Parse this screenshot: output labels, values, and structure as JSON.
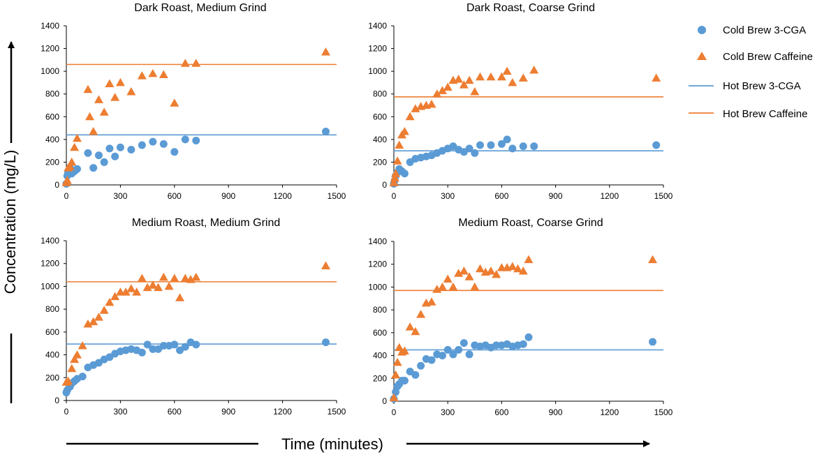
{
  "colors": {
    "cga": "#5b9bd5",
    "caffeine": "#ed7d31",
    "cga_line": "#5b9bd5",
    "caffeine_line": "#ed7d31",
    "axis": "#000000"
  },
  "figure": {
    "ylabel": "Concentration (mg/L)",
    "xlabel": "Time (minutes)"
  },
  "legend": {
    "placement": "top-right",
    "items": [
      {
        "label": "Cold Brew 3-CGA",
        "marker": "circle",
        "color_key": "cga"
      },
      {
        "label": "Cold Brew Caffeine",
        "marker": "triangle",
        "color_key": "caffeine"
      },
      {
        "label": "Hot Brew 3-CGA",
        "marker": "line",
        "color_key": "cga_line"
      },
      {
        "label": "Hot Brew Caffeine",
        "marker": "line",
        "color_key": "caffeine_line"
      }
    ]
  },
  "chart_data": [
    {
      "type": "scatter",
      "title": "Dark Roast, Medium Grind",
      "xlim": [
        0,
        1500
      ],
      "ylim": [
        0,
        1400
      ],
      "xticks": [
        "0",
        "300",
        "600",
        "900",
        "1200",
        "1500"
      ],
      "yticks": [
        "0",
        "200",
        "400",
        "600",
        "800",
        "1000",
        "1200",
        "1400"
      ],
      "grid": false,
      "series": [
        {
          "name": "Cold Brew 3-CGA",
          "color_key": "cga",
          "marker": "circle",
          "x": [
            0,
            5,
            10,
            20,
            30,
            45,
            60,
            120,
            150,
            180,
            210,
            240,
            270,
            300,
            360,
            420,
            480,
            540,
            600,
            660,
            720,
            1440
          ],
          "y": [
            10,
            80,
            110,
            150,
            100,
            120,
            140,
            280,
            150,
            260,
            200,
            320,
            250,
            330,
            310,
            350,
            380,
            360,
            290,
            400,
            390,
            470
          ]
        },
        {
          "name": "Cold Brew Caffeine",
          "color_key": "caffeine",
          "marker": "triangle",
          "x": [
            0,
            5,
            10,
            20,
            30,
            45,
            60,
            120,
            130,
            150,
            180,
            210,
            240,
            270,
            300,
            360,
            420,
            480,
            540,
            600,
            660,
            720,
            1440
          ],
          "y": [
            20,
            40,
            150,
            160,
            200,
            330,
            410,
            840,
            600,
            470,
            750,
            640,
            890,
            770,
            900,
            820,
            960,
            980,
            970,
            720,
            1070,
            1070,
            1170
          ]
        },
        {
          "name": "Hot Brew 3-CGA",
          "color_key": "cga_line",
          "marker": "line",
          "value": 440
        },
        {
          "name": "Hot Brew Caffeine",
          "color_key": "caffeine_line",
          "marker": "line",
          "value": 1060
        }
      ]
    },
    {
      "type": "scatter",
      "title": "Dark Roast, Coarse Grind",
      "xlim": [
        0,
        1500
      ],
      "ylim": [
        0,
        1400
      ],
      "xticks": [
        "0",
        "300",
        "600",
        "900",
        "1200",
        "1500"
      ],
      "yticks": [
        "0",
        "200",
        "400",
        "600",
        "800",
        "1000",
        "1200",
        "1400"
      ],
      "grid": false,
      "series": [
        {
          "name": "Cold Brew 3-CGA",
          "color_key": "cga",
          "marker": "circle",
          "x": [
            0,
            5,
            10,
            20,
            30,
            45,
            60,
            90,
            120,
            150,
            180,
            210,
            240,
            270,
            300,
            330,
            360,
            390,
            420,
            450,
            480,
            540,
            600,
            630,
            660,
            720,
            780,
            1460
          ],
          "y": [
            10,
            40,
            80,
            110,
            140,
            120,
            100,
            200,
            230,
            240,
            250,
            260,
            280,
            300,
            320,
            340,
            310,
            290,
            320,
            280,
            350,
            350,
            360,
            400,
            320,
            340,
            340,
            350
          ]
        },
        {
          "name": "Cold Brew Caffeine",
          "color_key": "caffeine",
          "marker": "triangle",
          "x": [
            0,
            5,
            10,
            20,
            30,
            45,
            60,
            90,
            120,
            150,
            180,
            210,
            240,
            270,
            300,
            330,
            360,
            390,
            420,
            450,
            480,
            540,
            600,
            630,
            660,
            720,
            780,
            1460
          ],
          "y": [
            20,
            60,
            100,
            210,
            350,
            440,
            470,
            600,
            670,
            690,
            700,
            710,
            800,
            830,
            860,
            920,
            930,
            880,
            920,
            820,
            950,
            950,
            950,
            1000,
            900,
            940,
            1010,
            940
          ]
        },
        {
          "name": "Hot Brew 3-CGA",
          "color_key": "cga_line",
          "marker": "line",
          "value": 300
        },
        {
          "name": "Hot Brew Caffeine",
          "color_key": "caffeine_line",
          "marker": "line",
          "value": 775
        }
      ]
    },
    {
      "type": "scatter",
      "title": "Medium Roast, Medium Grind",
      "xlim": [
        0,
        1500
      ],
      "ylim": [
        0,
        1400
      ],
      "xticks": [
        "0",
        "300",
        "600",
        "900",
        "1200",
        "1500"
      ],
      "yticks": [
        "0",
        "200",
        "400",
        "600",
        "800",
        "1000",
        "1200",
        "1400"
      ],
      "grid": false,
      "series": [
        {
          "name": "Cold Brew 3-CGA",
          "color_key": "cga",
          "marker": "circle",
          "x": [
            0,
            5,
            20,
            30,
            45,
            60,
            90,
            120,
            150,
            180,
            210,
            240,
            270,
            300,
            330,
            360,
            390,
            420,
            450,
            480,
            510,
            540,
            570,
            600,
            630,
            660,
            690,
            720,
            1440
          ],
          "y": [
            70,
            90,
            120,
            150,
            170,
            190,
            210,
            290,
            310,
            330,
            360,
            380,
            410,
            430,
            440,
            450,
            440,
            420,
            490,
            450,
            450,
            480,
            480,
            490,
            440,
            470,
            510,
            490,
            510
          ]
        },
        {
          "name": "Cold Brew Caffeine",
          "color_key": "caffeine",
          "marker": "triangle",
          "x": [
            0,
            10,
            30,
            45,
            60,
            90,
            120,
            150,
            180,
            210,
            240,
            270,
            300,
            330,
            360,
            390,
            420,
            450,
            480,
            510,
            540,
            570,
            600,
            630,
            660,
            690,
            720,
            1440
          ],
          "y": [
            160,
            170,
            280,
            360,
            400,
            480,
            670,
            690,
            730,
            790,
            860,
            910,
            950,
            950,
            980,
            950,
            1070,
            990,
            1010,
            990,
            1080,
            1000,
            1070,
            900,
            1070,
            1060,
            1080,
            1180
          ]
        },
        {
          "name": "Hot Brew 3-CGA",
          "color_key": "cga_line",
          "marker": "line",
          "value": 495
        },
        {
          "name": "Hot Brew Caffeine",
          "color_key": "caffeine_line",
          "marker": "line",
          "value": 1040
        }
      ]
    },
    {
      "type": "scatter",
      "title": "Medium Roast, Coarse Grind",
      "xlim": [
        0,
        1500
      ],
      "ylim": [
        0,
        1400
      ],
      "xticks": [
        "0",
        "300",
        "600",
        "900",
        "1200",
        "1500"
      ],
      "yticks": [
        "0",
        "200",
        "400",
        "600",
        "800",
        "1000",
        "1200",
        "1400"
      ],
      "grid": false,
      "series": [
        {
          "name": "Cold Brew 3-CGA",
          "color_key": "cga",
          "marker": "circle",
          "x": [
            0,
            10,
            20,
            30,
            45,
            60,
            90,
            120,
            150,
            180,
            210,
            240,
            270,
            300,
            330,
            360,
            390,
            420,
            450,
            480,
            510,
            540,
            570,
            600,
            630,
            660,
            690,
            720,
            750,
            1440
          ],
          "y": [
            20,
            80,
            130,
            150,
            180,
            180,
            260,
            230,
            310,
            370,
            360,
            410,
            400,
            450,
            410,
            450,
            510,
            410,
            490,
            480,
            490,
            470,
            490,
            490,
            500,
            480,
            490,
            500,
            560,
            520
          ]
        },
        {
          "name": "Cold Brew Caffeine",
          "color_key": "caffeine",
          "marker": "triangle",
          "x": [
            0,
            10,
            20,
            30,
            45,
            60,
            90,
            120,
            150,
            180,
            210,
            240,
            270,
            300,
            330,
            360,
            390,
            420,
            450,
            480,
            510,
            540,
            570,
            600,
            630,
            660,
            690,
            720,
            750,
            1440
          ],
          "y": [
            30,
            230,
            340,
            470,
            430,
            440,
            650,
            610,
            760,
            860,
            870,
            980,
            1000,
            1070,
            1000,
            1120,
            1140,
            1090,
            1000,
            1160,
            1130,
            1140,
            1110,
            1170,
            1170,
            1180,
            1160,
            1140,
            1240,
            1240
          ]
        },
        {
          "name": "Hot Brew 3-CGA",
          "color_key": "cga_line",
          "marker": "line",
          "value": 450
        },
        {
          "name": "Hot Brew Caffeine",
          "color_key": "caffeine_line",
          "marker": "line",
          "value": 970
        }
      ]
    }
  ]
}
